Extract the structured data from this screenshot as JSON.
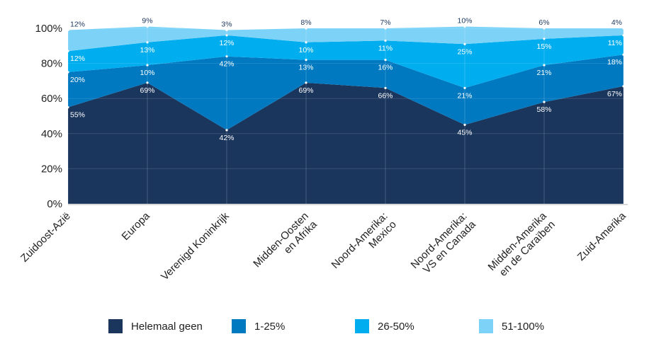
{
  "chart_data": {
    "type": "area",
    "stacked": true,
    "categories": [
      "Zuidoost-Azië",
      "Europa",
      "Verenigd Koninkrijk",
      "Midden-Oosten en Afrika",
      "Noord-Amerika: Mexico",
      "Noord-Amerika: VS en Canada",
      "Midden-Amerika en de Caraïben",
      "Zuid-Amerika"
    ],
    "category_lines": [
      [
        "Zuidoost-Azië"
      ],
      [
        "Europa"
      ],
      [
        "Verenigd Koninkrijk"
      ],
      [
        "Midden-Oosten",
        "en Afrika"
      ],
      [
        "Noord-Amerika:",
        "Mexico"
      ],
      [
        "Noord-Amerika:",
        "VS en Canada"
      ],
      [
        "Midden-Amerika",
        "en de Caraïben"
      ],
      [
        "Zuid-Amerika"
      ]
    ],
    "series": [
      {
        "name": "Helemaal geen",
        "color": "#1b365d",
        "values": [
          55,
          69,
          42,
          69,
          66,
          45,
          58,
          67
        ],
        "labels": [
          "55%",
          "69%",
          "42%",
          "69%",
          "66%",
          "45%",
          "58%",
          "67%"
        ]
      },
      {
        "name": "1-25%",
        "color": "#0079c1",
        "values": [
          20,
          10,
          42,
          13,
          16,
          21,
          21,
          18
        ],
        "labels": [
          "20%",
          "10%",
          "42%",
          "13%",
          "16%",
          "21%",
          "21%",
          "18%"
        ]
      },
      {
        "name": "26-50%",
        "color": "#00aeef",
        "values": [
          12,
          13,
          12,
          10,
          11,
          25,
          15,
          11
        ],
        "labels": [
          "12%",
          "13%",
          "12%",
          "10%",
          "11%",
          "25%",
          "15%",
          "11%"
        ]
      },
      {
        "name": "51-100%",
        "color": "#7dd3f7",
        "values": [
          12,
          9,
          3,
          8,
          7,
          10,
          6,
          4
        ],
        "labels": [
          "12%",
          "9%",
          "3%",
          "8%",
          "7%",
          "10%",
          "6%",
          "4%"
        ]
      }
    ],
    "yticks": [
      "0%",
      "20%",
      "40%",
      "60%",
      "80%",
      "100%"
    ],
    "ylim": [
      0,
      100
    ],
    "grid": true,
    "legend": "bottom"
  }
}
